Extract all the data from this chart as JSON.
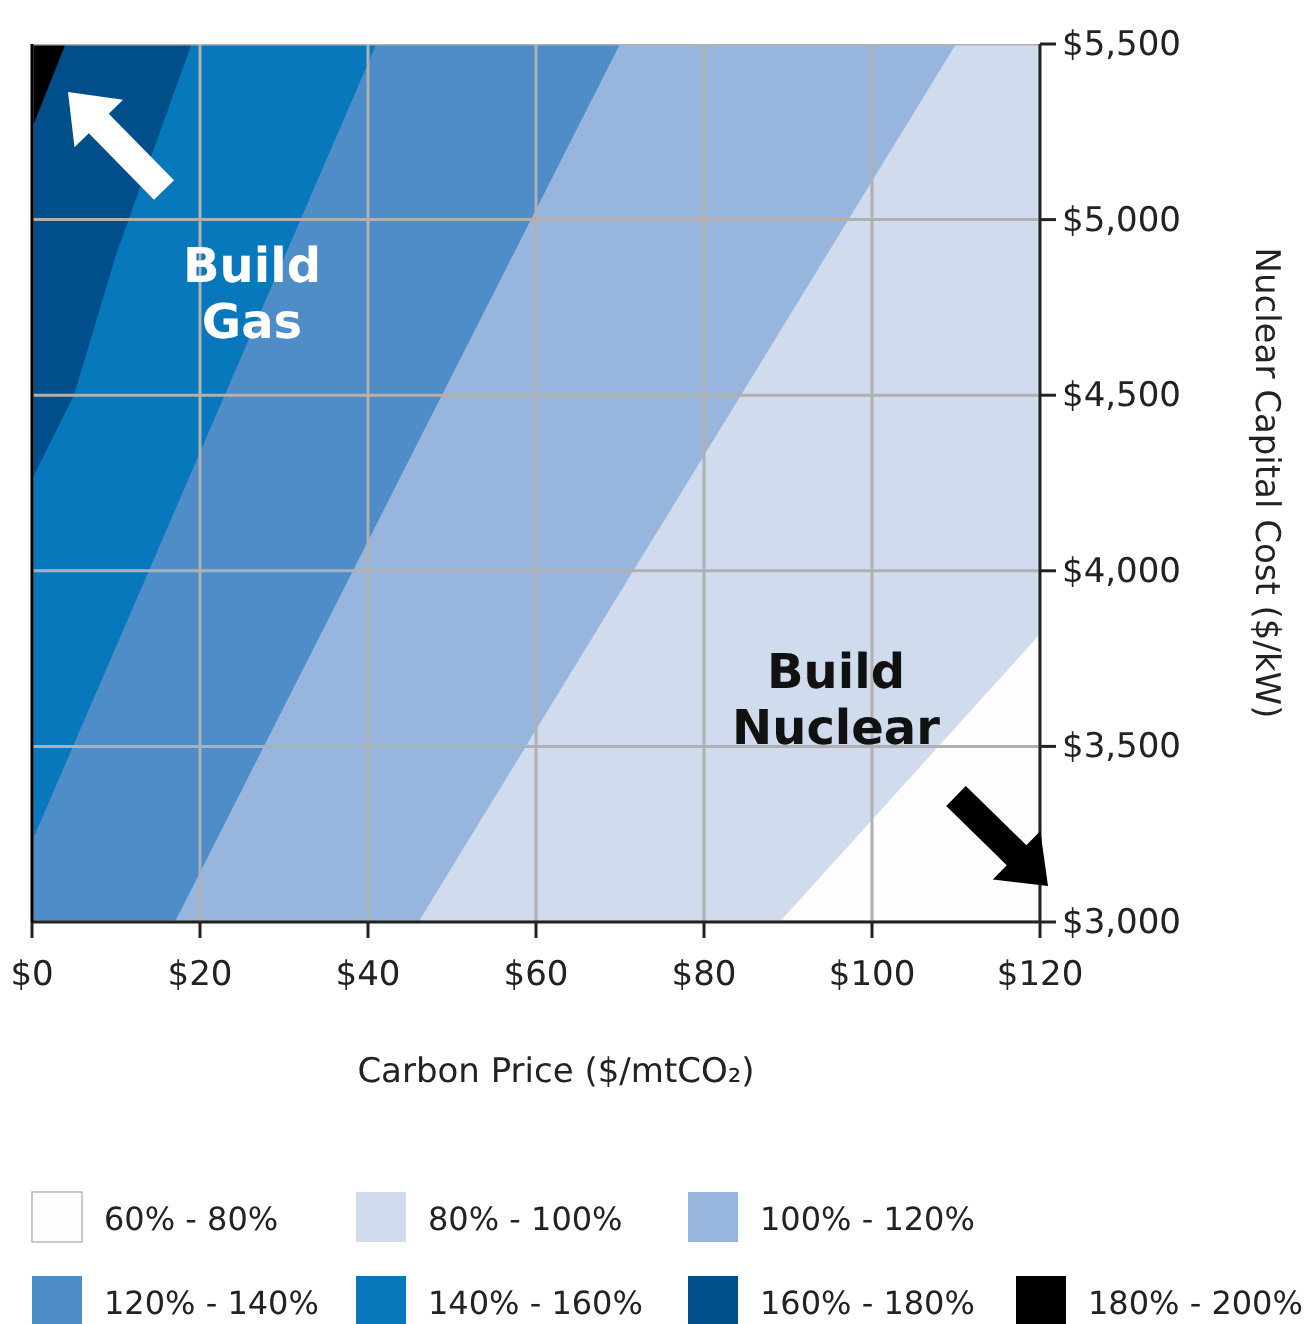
{
  "chart_data": {
    "type": "area",
    "xlabel": "Carbon Price ($/mtCO₂)",
    "ylabel": "Nuclear Capital Cost ($/kW)",
    "xlim": [
      0,
      120
    ],
    "xticks": [
      {
        "value": 0,
        "label": "$0"
      },
      {
        "value": 20,
        "label": "$20"
      },
      {
        "value": 40,
        "label": "$40"
      },
      {
        "value": 60,
        "label": "$60"
      },
      {
        "value": 80,
        "label": "$80"
      },
      {
        "value": 100,
        "label": "$100"
      },
      {
        "value": 120,
        "label": "$120"
      }
    ],
    "ylim": [
      3000,
      5500
    ],
    "yticks": [
      {
        "value": 3000,
        "label": "$3,000"
      },
      {
        "value": 3500,
        "label": "$3,500"
      },
      {
        "value": 4000,
        "label": "$4,000"
      },
      {
        "value": 4500,
        "label": "$4,500"
      },
      {
        "value": 5000,
        "label": "$5,000"
      },
      {
        "value": 5500,
        "label": "$5,500"
      }
    ],
    "grid": true,
    "legend": "bottom",
    "series": [
      {
        "name": "60% - 80%",
        "color": "#fdfdfd",
        "x": [
          89,
          110,
          120
        ],
        "values": [
          3000,
          3555,
          3820
        ]
      },
      {
        "name": "80% - 100%",
        "color": "#d0dcee",
        "x": [
          46,
          70,
          89,
          110,
          120
        ],
        "values": [
          3000,
          3938,
          4680,
          5500,
          5500
        ]
      },
      {
        "name": "100% - 120%",
        "color": "#98b6dd",
        "x": [
          17,
          19,
          41,
          46,
          70,
          89,
          110
        ],
        "values": [
          3000,
          3094,
          4132,
          4368,
          5500,
          5500,
          5500
        ]
      },
      {
        "name": "120% - 140%",
        "color": "#4f8dc9",
        "x": [
          0,
          4,
          5,
          10,
          17,
          19,
          41,
          46,
          70
        ],
        "values": [
          3230,
          3451,
          3507,
          3784,
          4171,
          4282,
          5500,
          5500,
          5500
        ]
      },
      {
        "name": "140% - 160%",
        "color": "#0878bc",
        "x": [
          0,
          4,
          5,
          10,
          17,
          19,
          41
        ],
        "values": [
          4260,
          4452,
          4500,
          4900,
          5367,
          5500,
          5500
        ]
      },
      {
        "name": "160% - 180%",
        "color": "#004f8b",
        "x": [
          0,
          4,
          5,
          10,
          17,
          19
        ],
        "values": [
          5260,
          5500,
          5500,
          5500,
          5500,
          5500
        ]
      },
      {
        "name": "180% - 200%",
        "color": "#000000",
        "x": [
          0,
          4
        ],
        "values": [
          5500,
          5500
        ]
      }
    ],
    "annotations": [
      "Build Gas",
      "Build Nuclear"
    ]
  }
}
